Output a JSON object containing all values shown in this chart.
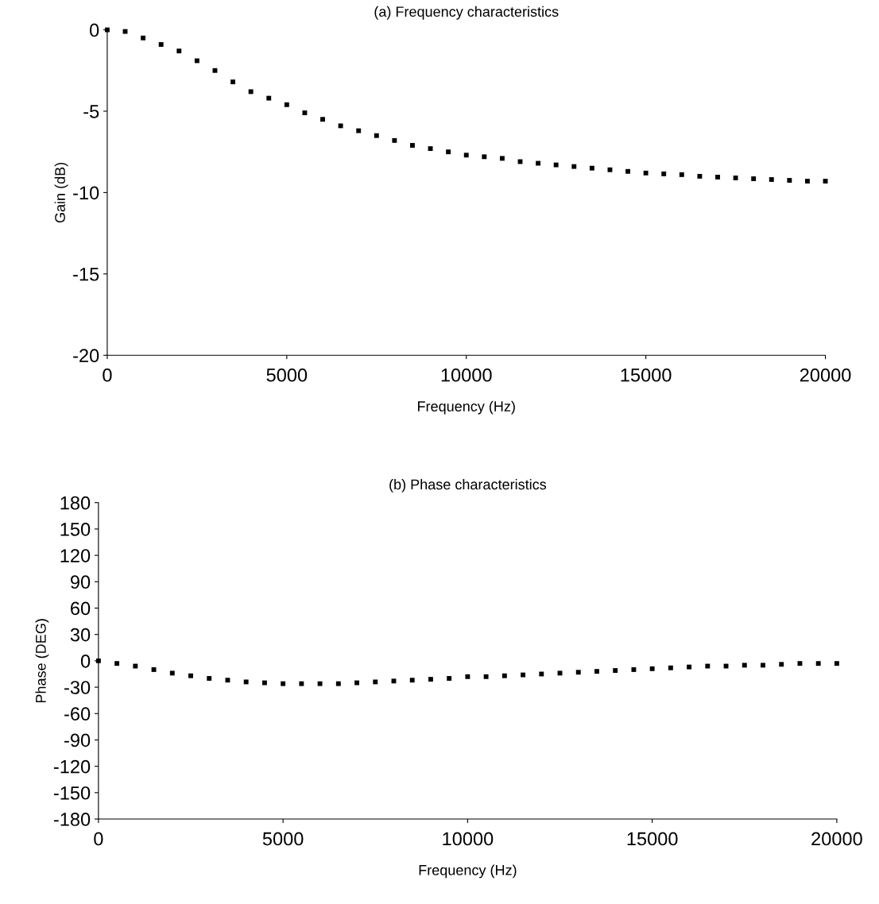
{
  "chart_data": [
    {
      "type": "scatter",
      "title": "(a) Frequency characteristics",
      "xlabel": "Frequency (Hz)",
      "ylabel": "Gain (dB)",
      "marker": "square",
      "grid": false,
      "x": [
        0,
        500,
        1000,
        1500,
        2000,
        2500,
        3000,
        3500,
        4000,
        4500,
        5000,
        5500,
        6000,
        6500,
        7000,
        7500,
        8000,
        8500,
        9000,
        9500,
        10000,
        10500,
        11000,
        11500,
        12000,
        12500,
        13000,
        13500,
        14000,
        14500,
        15000,
        15500,
        16000,
        16500,
        17000,
        17500,
        18000,
        18500,
        19000,
        19500,
        20000
      ],
      "series": [
        {
          "color": "#000000",
          "values": [
            0,
            -0.1,
            -0.5,
            -0.9,
            -1.3,
            -1.9,
            -2.5,
            -3.2,
            -3.8,
            -4.2,
            -4.6,
            -5.1,
            -5.5,
            -5.9,
            -6.2,
            -6.5,
            -6.8,
            -7.1,
            -7.3,
            -7.5,
            -7.7,
            -7.8,
            -7.9,
            -8.1,
            -8.2,
            -8.3,
            -8.4,
            -8.5,
            -8.6,
            -8.7,
            -8.8,
            -8.85,
            -8.9,
            -9.0,
            -9.05,
            -9.1,
            -9.15,
            -9.2,
            -9.25,
            -9.3,
            -9.3
          ]
        }
      ],
      "xlim": [
        0,
        20000
      ],
      "xticks": [
        0,
        5000,
        10000,
        15000,
        20000
      ],
      "ylim": [
        -20,
        0
      ],
      "yticks": [
        -20,
        -15,
        -10,
        -5,
        0
      ]
    },
    {
      "type": "scatter",
      "title": "(b) Phase characteristics",
      "xlabel": "Frequency (Hz)",
      "ylabel": "Phase (DEG)",
      "marker": "square",
      "grid": false,
      "x": [
        0,
        500,
        1000,
        1500,
        2000,
        2500,
        3000,
        3500,
        4000,
        4500,
        5000,
        5500,
        6000,
        6500,
        7000,
        7500,
        8000,
        8500,
        9000,
        9500,
        10000,
        10500,
        11000,
        11500,
        12000,
        12500,
        13000,
        13500,
        14000,
        14500,
        15000,
        15500,
        16000,
        16500,
        17000,
        17500,
        18000,
        18500,
        19000,
        19500,
        20000
      ],
      "series": [
        {
          "color": "#000000",
          "values": [
            0,
            -3,
            -6,
            -10,
            -14,
            -17,
            -20,
            -22,
            -24,
            -25,
            -26,
            -26,
            -26,
            -26,
            -25,
            -24,
            -23,
            -22,
            -21,
            -20,
            -18,
            -18,
            -17,
            -16,
            -15,
            -14,
            -13,
            -12,
            -11,
            -10,
            -9,
            -8,
            -7,
            -6,
            -6,
            -5,
            -5,
            -4,
            -3,
            -3,
            -3
          ]
        }
      ],
      "xlim": [
        0,
        20000
      ],
      "xticks": [
        0,
        5000,
        10000,
        15000,
        20000
      ],
      "ylim": [
        -180,
        180
      ],
      "yticks": [
        -180,
        -150,
        -120,
        -90,
        -60,
        -30,
        0,
        30,
        60,
        90,
        120,
        150,
        180
      ]
    }
  ]
}
